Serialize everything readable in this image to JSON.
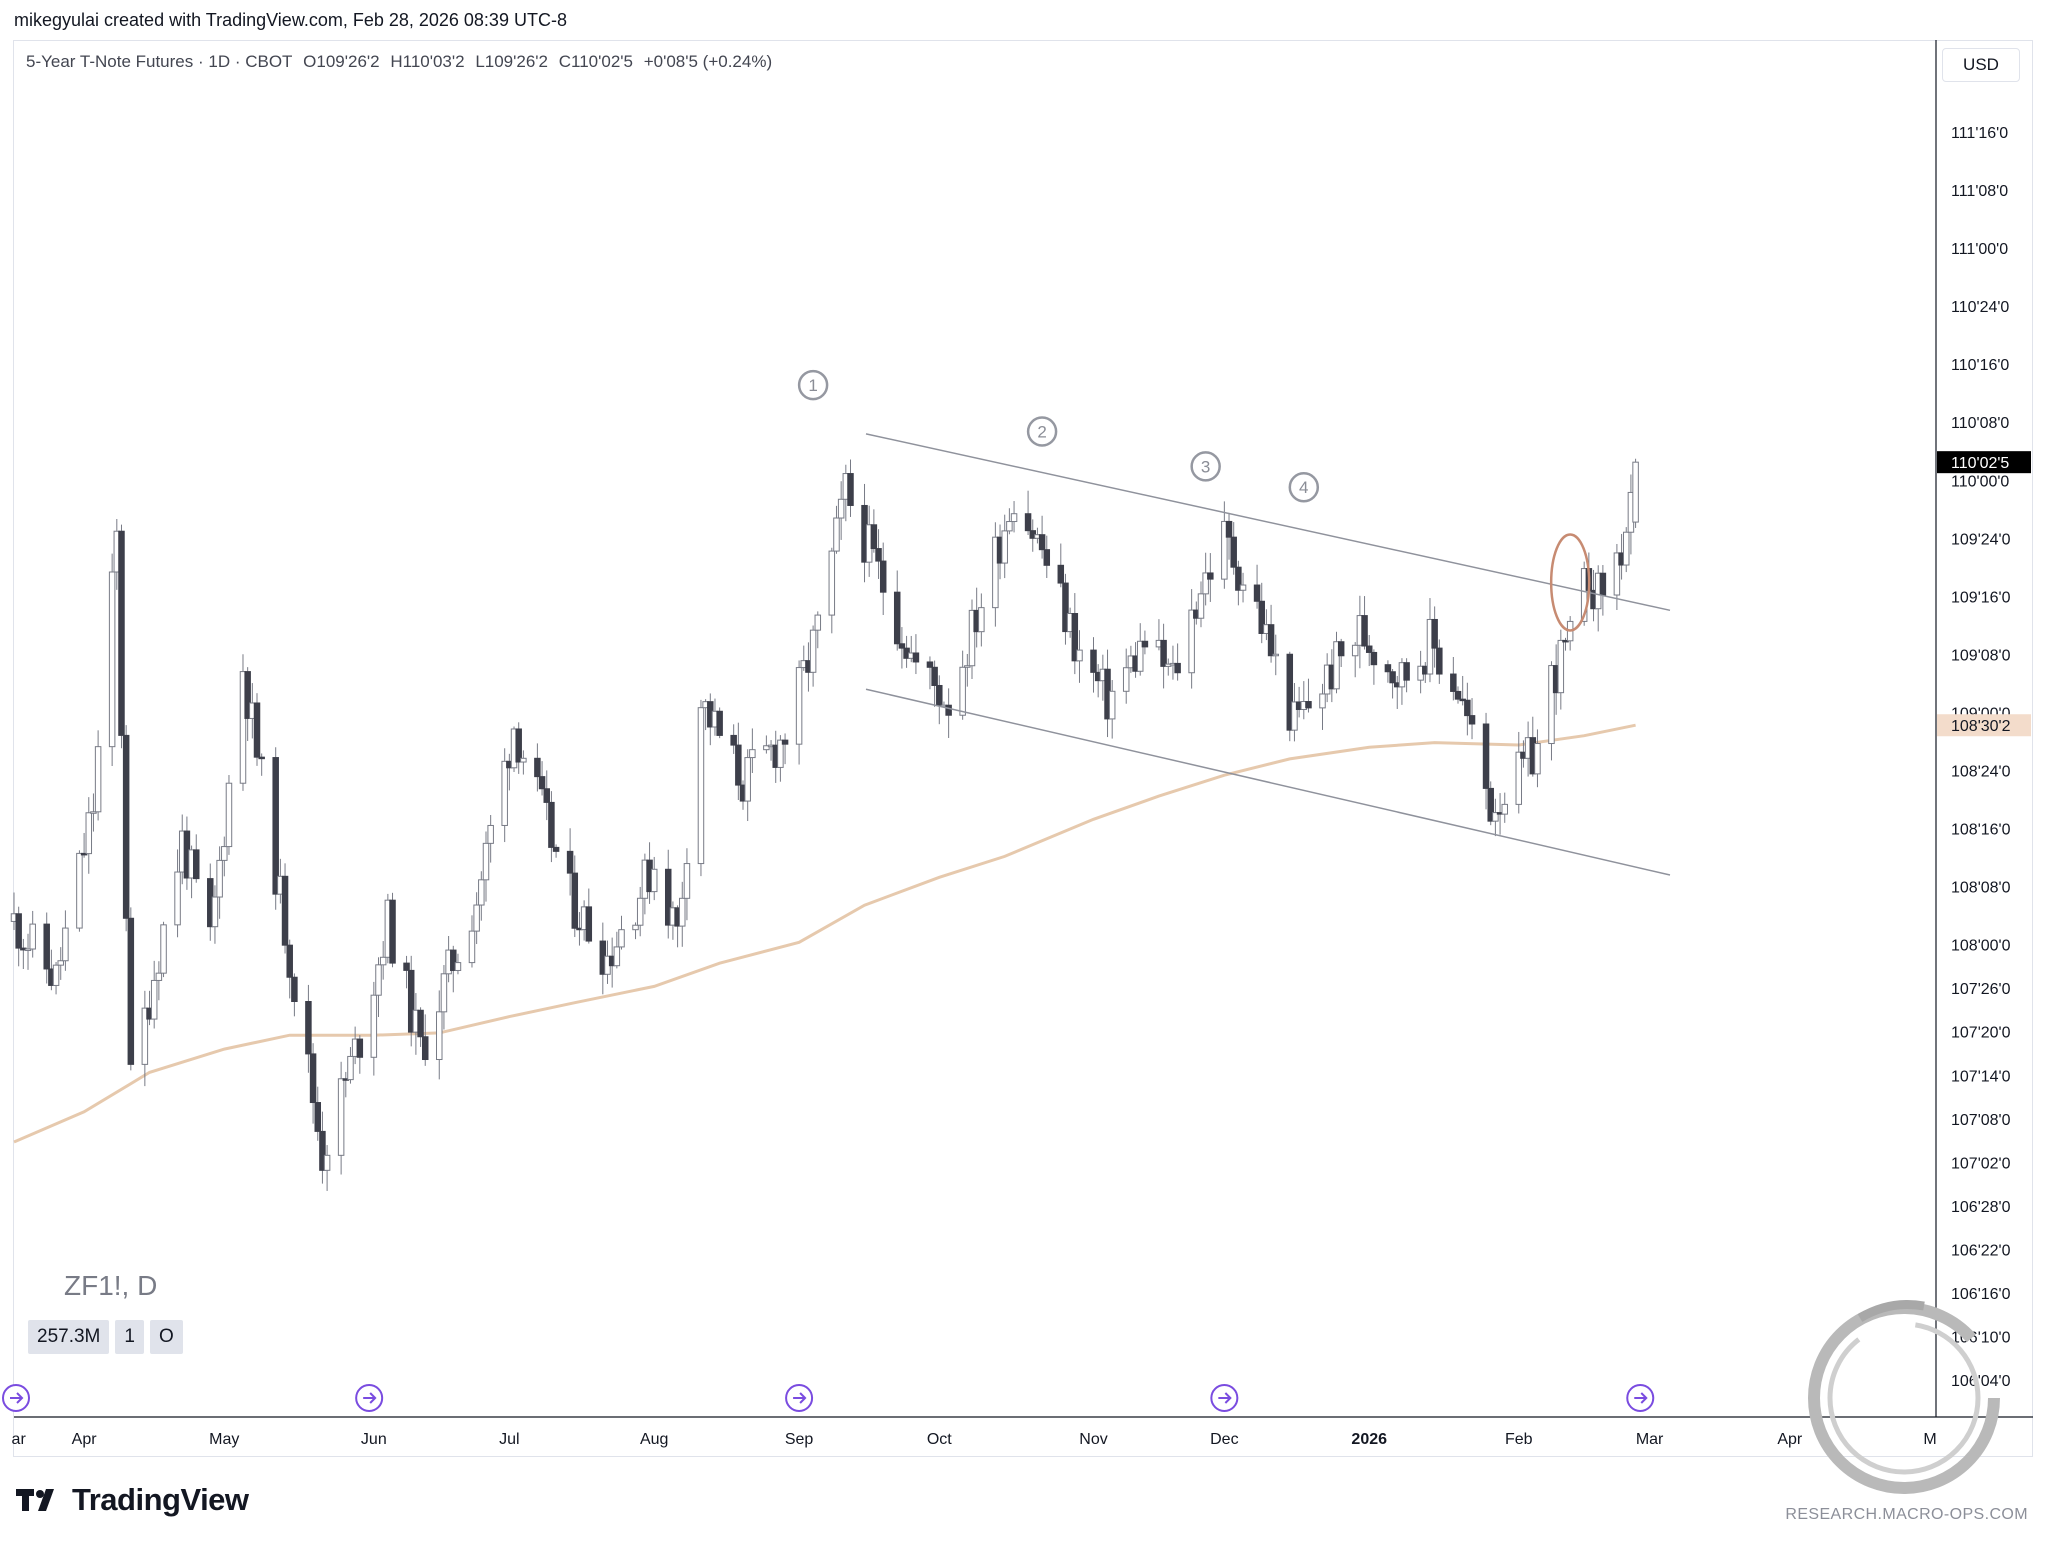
{
  "header": {
    "credit": "mikegyulai created with TradingView.com, Feb 28, 2026 08:39 UTC-8"
  },
  "legend": {
    "title": "5-Year T-Note Futures · 1D · CBOT",
    "open": "O109'26'2",
    "high": "H110'03'2",
    "low": "L109'26'2",
    "close": "C110'02'5",
    "change": "+0'08'5 (+0.24%)"
  },
  "currency": "USD",
  "symbol_watermark": "ZF1!, D",
  "volume_badges": [
    "257.3M",
    "1",
    "O"
  ],
  "footer": {
    "brand": "TradingView",
    "credit": "RESEARCH.MACRO-OPS.COM"
  },
  "colors": {
    "up_candle": "#ffffff",
    "down_candle": "#3d3f4a",
    "candle_outline": "#787b86",
    "moving_average": "#e6c9ad",
    "channel_lines": "#8f929c",
    "last_price_bg": "#000000",
    "ma_label_bg": "#f3dccb",
    "highlight_ellipse": "#c78b72",
    "event_marker": "#7a4ce0"
  },
  "chart_data": {
    "type": "candlestick",
    "symbol": "ZF1!",
    "interval": "D",
    "price_unit": "32nds (points'32nds'tenths)",
    "ylim": [
      105.97,
      111.72
    ],
    "y_ticks": [
      {
        "value": 111.5,
        "label": "111'16'0"
      },
      {
        "value": 111.25,
        "label": "111'08'0"
      },
      {
        "value": 111.0,
        "label": "111'00'0"
      },
      {
        "value": 110.75,
        "label": "110'24'0"
      },
      {
        "value": 110.5,
        "label": "110'16'0"
      },
      {
        "value": 110.25,
        "label": "110'08'0"
      },
      {
        "value": 110.0,
        "label": "110'00'0"
      },
      {
        "value": 109.75,
        "label": "109'24'0"
      },
      {
        "value": 109.5,
        "label": "109'16'0"
      },
      {
        "value": 109.25,
        "label": "109'08'0"
      },
      {
        "value": 109.0,
        "label": "109'00'0"
      },
      {
        "value": 108.75,
        "label": "108'24'0"
      },
      {
        "value": 108.5,
        "label": "108'16'0"
      },
      {
        "value": 108.25,
        "label": "108'08'0"
      },
      {
        "value": 108.0,
        "label": "108'00'0"
      },
      {
        "value": 107.8125,
        "label": "107'26'0"
      },
      {
        "value": 107.625,
        "label": "107'20'0"
      },
      {
        "value": 107.4375,
        "label": "107'14'0"
      },
      {
        "value": 107.25,
        "label": "107'08'0"
      },
      {
        "value": 107.0625,
        "label": "107'02'0"
      },
      {
        "value": 106.875,
        "label": "106'28'0"
      },
      {
        "value": 106.6875,
        "label": "106'22'0"
      },
      {
        "value": 106.5,
        "label": "106'16'0"
      },
      {
        "value": 106.3125,
        "label": "106'10'0"
      },
      {
        "value": 106.125,
        "label": "106'04'0"
      }
    ],
    "x_ticks": [
      {
        "date": "2025-03-18",
        "label": "ar"
      },
      {
        "date": "2025-04-01",
        "label": "Apr"
      },
      {
        "date": "2025-05-01",
        "label": "May"
      },
      {
        "date": "2025-06-02",
        "label": "Jun"
      },
      {
        "date": "2025-07-01",
        "label": "Jul"
      },
      {
        "date": "2025-08-01",
        "label": "Aug"
      },
      {
        "date": "2025-09-01",
        "label": "Sep"
      },
      {
        "date": "2025-10-01",
        "label": "Oct"
      },
      {
        "date": "2025-11-03",
        "label": "Nov"
      },
      {
        "date": "2025-12-01",
        "label": "Dec"
      },
      {
        "date": "2026-01-01",
        "label": "2026"
      },
      {
        "date": "2026-02-02",
        "label": "Feb"
      },
      {
        "date": "2026-03-02",
        "label": "Mar"
      },
      {
        "date": "2026-04-01",
        "label": "Apr"
      },
      {
        "date": "2026-05-01",
        "label": "M"
      }
    ],
    "last_price": {
      "value": 110.078,
      "label": "110'02'5"
    },
    "moving_average_last": {
      "value": 108.945,
      "label": "108'30'2"
    },
    "candle_anchors": [
      {
        "date": "2025-03-17",
        "price": 108.1
      },
      {
        "date": "2025-03-26",
        "price": 107.85
      },
      {
        "date": "2025-04-03",
        "price": 108.6
      },
      {
        "date": "2025-04-08",
        "price": 109.75
      },
      {
        "date": "2025-04-09",
        "price": 108.95
      },
      {
        "date": "2025-04-11",
        "price": 107.4
      },
      {
        "date": "2025-04-22",
        "price": 108.45
      },
      {
        "date": "2025-04-28",
        "price": 108.0
      },
      {
        "date": "2025-05-05",
        "price": 109.2
      },
      {
        "date": "2025-05-15",
        "price": 107.95
      },
      {
        "date": "2025-05-22",
        "price": 107.1
      },
      {
        "date": "2025-05-30",
        "price": 107.6
      },
      {
        "date": "2025-06-05",
        "price": 108.1
      },
      {
        "date": "2025-06-12",
        "price": 107.55
      },
      {
        "date": "2025-06-24",
        "price": 108.2
      },
      {
        "date": "2025-07-02",
        "price": 108.95
      },
      {
        "date": "2025-07-14",
        "price": 108.2
      },
      {
        "date": "2025-07-22",
        "price": 107.95
      },
      {
        "date": "2025-08-01",
        "price": 108.35
      },
      {
        "date": "2025-08-06",
        "price": 108.05
      },
      {
        "date": "2025-08-11",
        "price": 109.05
      },
      {
        "date": "2025-08-20",
        "price": 108.7
      },
      {
        "date": "2025-08-29",
        "price": 108.9
      },
      {
        "date": "2025-09-05",
        "price": 109.35
      },
      {
        "date": "2025-09-11",
        "price": 109.95
      },
      {
        "date": "2025-09-17",
        "price": 109.65
      },
      {
        "date": "2025-09-26",
        "price": 109.2
      },
      {
        "date": "2025-10-03",
        "price": 109.05
      },
      {
        "date": "2025-10-08",
        "price": 109.35
      },
      {
        "date": "2025-10-17",
        "price": 109.95
      },
      {
        "date": "2025-10-23",
        "price": 109.7
      },
      {
        "date": "2025-10-31",
        "price": 109.25
      },
      {
        "date": "2025-11-06",
        "price": 109.05
      },
      {
        "date": "2025-11-14",
        "price": 109.3
      },
      {
        "date": "2025-11-20",
        "price": 109.15
      },
      {
        "date": "2025-11-26",
        "price": 109.55
      },
      {
        "date": "2025-12-01",
        "price": 109.75
      },
      {
        "date": "2025-12-08",
        "price": 109.45
      },
      {
        "date": "2025-12-16",
        "price": 108.95
      },
      {
        "date": "2025-12-23",
        "price": 109.15
      },
      {
        "date": "2025-12-30",
        "price": 109.35
      },
      {
        "date": "2026-01-08",
        "price": 109.15
      },
      {
        "date": "2026-01-14",
        "price": 109.3
      },
      {
        "date": "2026-01-20",
        "price": 109.1
      },
      {
        "date": "2026-01-27",
        "price": 108.6
      },
      {
        "date": "2026-02-03",
        "price": 108.75
      },
      {
        "date": "2026-02-06",
        "price": 108.85
      },
      {
        "date": "2026-02-09",
        "price": 109.15
      },
      {
        "date": "2026-02-13",
        "price": 109.3
      },
      {
        "date": "2026-02-17",
        "price": 109.6
      },
      {
        "date": "2026-02-19",
        "price": 109.5
      },
      {
        "date": "2026-02-24",
        "price": 109.7
      },
      {
        "date": "2026-02-26",
        "price": 109.85
      },
      {
        "date": "2026-02-27",
        "price": 110.078
      }
    ],
    "moving_average": [
      {
        "date": "2025-03-17",
        "value": 107.15
      },
      {
        "date": "2025-04-01",
        "value": 107.28
      },
      {
        "date": "2025-04-15",
        "value": 107.45
      },
      {
        "date": "2025-05-01",
        "value": 107.55
      },
      {
        "date": "2025-05-15",
        "value": 107.61
      },
      {
        "date": "2025-06-02",
        "value": 107.61
      },
      {
        "date": "2025-06-16",
        "value": 107.62
      },
      {
        "date": "2025-07-01",
        "value": 107.69
      },
      {
        "date": "2025-07-15",
        "value": 107.75
      },
      {
        "date": "2025-08-01",
        "value": 107.82
      },
      {
        "date": "2025-08-15",
        "value": 107.92
      },
      {
        "date": "2025-09-01",
        "value": 108.01
      },
      {
        "date": "2025-09-15",
        "value": 108.17
      },
      {
        "date": "2025-10-01",
        "value": 108.29
      },
      {
        "date": "2025-10-15",
        "value": 108.38
      },
      {
        "date": "2025-11-03",
        "value": 108.54
      },
      {
        "date": "2025-11-17",
        "value": 108.64
      },
      {
        "date": "2025-12-01",
        "value": 108.73
      },
      {
        "date": "2025-12-15",
        "value": 108.8
      },
      {
        "date": "2026-01-01",
        "value": 108.85
      },
      {
        "date": "2026-01-15",
        "value": 108.87
      },
      {
        "date": "2026-02-02",
        "value": 108.86
      },
      {
        "date": "2026-02-16",
        "value": 108.9
      },
      {
        "date": "2026-02-27",
        "value": 108.945
      }
    ],
    "trendlines": [
      {
        "from": {
          "date": "2025-09-02",
          "price": 110.2
        },
        "to": {
          "date": "2026-03-02",
          "price": 109.44
        }
      },
      {
        "from": {
          "date": "2025-09-02",
          "price": 109.1
        },
        "to": {
          "date": "2026-03-02",
          "price": 108.3
        }
      }
    ],
    "wave_labels": [
      {
        "label": "1",
        "date": "2025-09-04",
        "price": 110.41
      },
      {
        "label": "2",
        "date": "2025-10-23",
        "price": 110.21
      },
      {
        "label": "3",
        "date": "2025-11-27",
        "price": 110.06
      },
      {
        "label": "4",
        "date": "2025-12-18",
        "price": 109.97
      }
    ],
    "highlight": {
      "date": "2026-02-13",
      "price": 109.56
    },
    "event_markers": [
      "2025-03-17",
      "2025-06-01",
      "2025-09-01",
      "2025-12-01",
      "2026-02-28"
    ]
  }
}
